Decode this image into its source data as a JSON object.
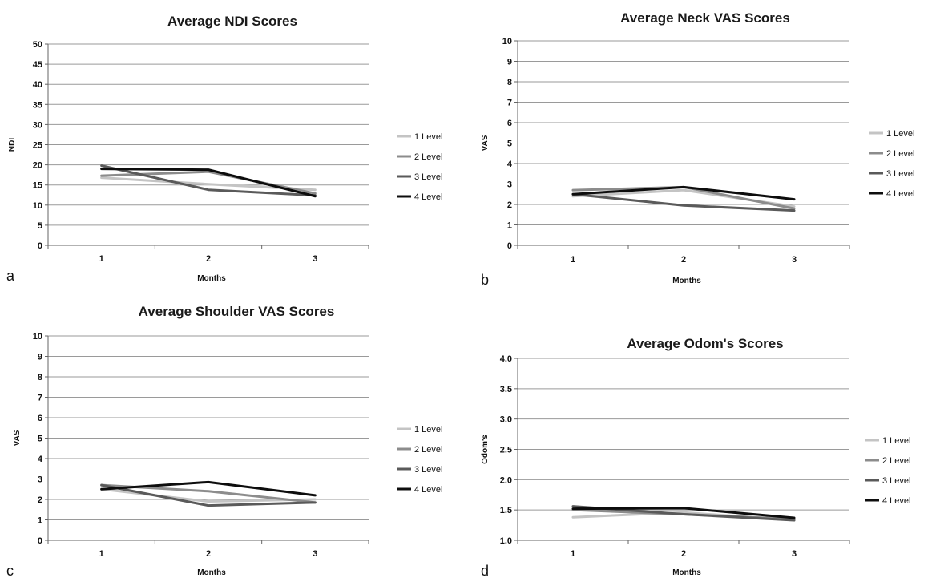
{
  "chart_data": [
    {
      "type": "line",
      "panel_letter": "a",
      "title": "Average NDI Scores",
      "xlabel": "Months",
      "ylabel": "NDI",
      "categories": [
        "1",
        "2",
        "3"
      ],
      "yticks": [
        "0",
        "5",
        "10",
        "15",
        "20",
        "25",
        "30",
        "35",
        "40",
        "45",
        "50"
      ],
      "ylim": [
        0,
        50
      ],
      "grid": true,
      "legend": "right",
      "series": [
        {
          "name": "1 Level",
          "values": [
            16.8,
            15.2,
            13.8
          ],
          "color": "#c4c4c4"
        },
        {
          "name": "2 Level",
          "values": [
            17.3,
            18.3,
            12.9
          ],
          "color": "#8c8c8c"
        },
        {
          "name": "3 Level",
          "values": [
            19.8,
            13.8,
            12.4
          ],
          "color": "#5a5a5a"
        },
        {
          "name": "4 Level",
          "values": [
            19.0,
            18.8,
            12.2
          ],
          "color": "#0d0d0d"
        }
      ]
    },
    {
      "type": "line",
      "panel_letter": "b",
      "title": "Average Neck VAS Scores",
      "xlabel": "Months",
      "ylabel": "VAS",
      "categories": [
        "1",
        "2",
        "3"
      ],
      "yticks": [
        "0",
        "1",
        "2",
        "3",
        "4",
        "5",
        "6",
        "7",
        "8",
        "9",
        "10"
      ],
      "ylim": [
        0,
        10
      ],
      "grid": true,
      "legend": "right",
      "series": [
        {
          "name": "1 Level",
          "values": [
            2.4,
            2.7,
            1.9
          ],
          "color": "#c4c4c4"
        },
        {
          "name": "2 Level",
          "values": [
            2.7,
            2.85,
            1.8
          ],
          "color": "#8c8c8c"
        },
        {
          "name": "3 Level",
          "values": [
            2.5,
            1.95,
            1.7
          ],
          "color": "#5a5a5a"
        },
        {
          "name": "4 Level",
          "values": [
            2.5,
            2.85,
            2.25
          ],
          "color": "#0d0d0d"
        }
      ]
    },
    {
      "type": "line",
      "panel_letter": "c",
      "title": "Average Shoulder VAS Scores",
      "xlabel": "Months",
      "ylabel": "VAS",
      "categories": [
        "1",
        "2",
        "3"
      ],
      "yticks": [
        "0",
        "1",
        "2",
        "3",
        "4",
        "5",
        "6",
        "7",
        "8",
        "9",
        "10"
      ],
      "ylim": [
        0,
        10
      ],
      "grid": true,
      "legend": "right",
      "series": [
        {
          "name": "1 Level",
          "values": [
            2.5,
            1.9,
            2.0
          ],
          "color": "#c4c4c4"
        },
        {
          "name": "2 Level",
          "values": [
            2.7,
            2.4,
            1.85
          ],
          "color": "#8c8c8c"
        },
        {
          "name": "3 Level",
          "values": [
            2.7,
            1.7,
            1.85
          ],
          "color": "#5a5a5a"
        },
        {
          "name": "4 Level",
          "values": [
            2.5,
            2.85,
            2.2
          ],
          "color": "#0d0d0d"
        }
      ]
    },
    {
      "type": "line",
      "panel_letter": "d",
      "title": "Average Odom's Scores",
      "xlabel": "Months",
      "ylabel": "Odom's",
      "categories": [
        "1",
        "2",
        "3"
      ],
      "yticks": [
        "1.0",
        "1.5",
        "2.0",
        "2.5",
        "3.0",
        "3.5",
        "4.0"
      ],
      "ylim": [
        1.0,
        4.0
      ],
      "grid": true,
      "legend": "right",
      "series": [
        {
          "name": "1 Level",
          "values": [
            1.38,
            1.46,
            1.33
          ],
          "color": "#c4c4c4"
        },
        {
          "name": "2 Level",
          "values": [
            1.5,
            1.43,
            1.35
          ],
          "color": "#8c8c8c"
        },
        {
          "name": "3 Level",
          "values": [
            1.56,
            1.43,
            1.33
          ],
          "color": "#5a5a5a"
        },
        {
          "name": "4 Level",
          "values": [
            1.52,
            1.53,
            1.37
          ],
          "color": "#0d0d0d"
        }
      ]
    }
  ]
}
